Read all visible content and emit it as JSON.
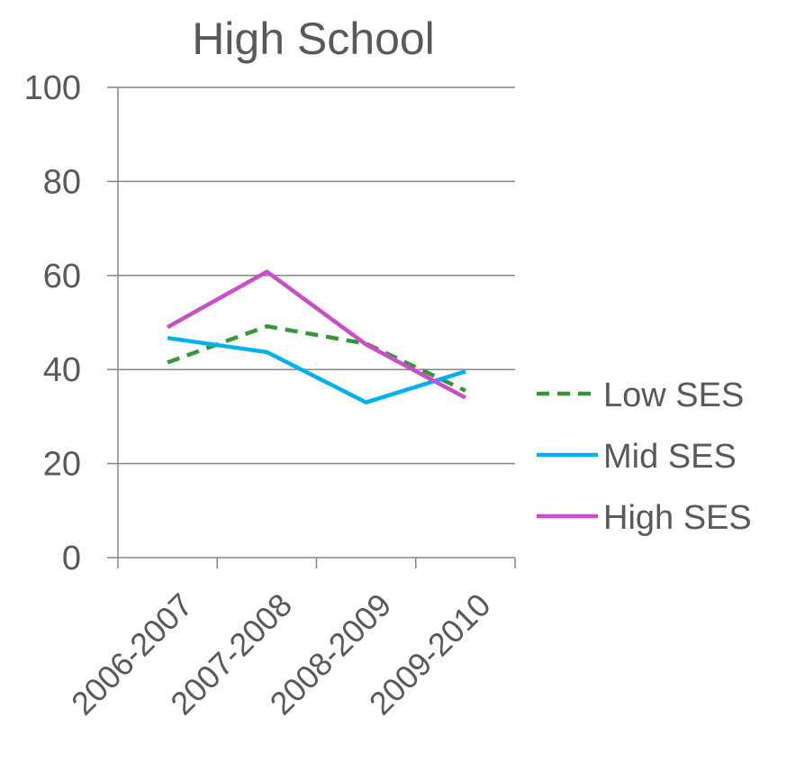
{
  "chart_data": {
    "type": "line",
    "title": "High School",
    "xlabel": "",
    "ylabel": "",
    "ylim": [
      0,
      100
    ],
    "yticks": [
      0,
      20,
      40,
      60,
      80,
      100
    ],
    "categories": [
      "2006-2007",
      "2007-2008",
      "2008-2009",
      "2009-2010"
    ],
    "grid": true,
    "legend_position": "right",
    "series": [
      {
        "name": "Low SES",
        "values": [
          41.5,
          49.2,
          45.5,
          35.5
        ],
        "color": "#339933",
        "dash": true
      },
      {
        "name": "Mid SES",
        "values": [
          46.7,
          43.7,
          33.0,
          39.6
        ],
        "color": "#00b0f0",
        "dash": false
      },
      {
        "name": "High SES",
        "values": [
          49.0,
          60.8,
          45.3,
          34.0
        ],
        "color": "#cc4ccc",
        "dash": false
      }
    ]
  }
}
